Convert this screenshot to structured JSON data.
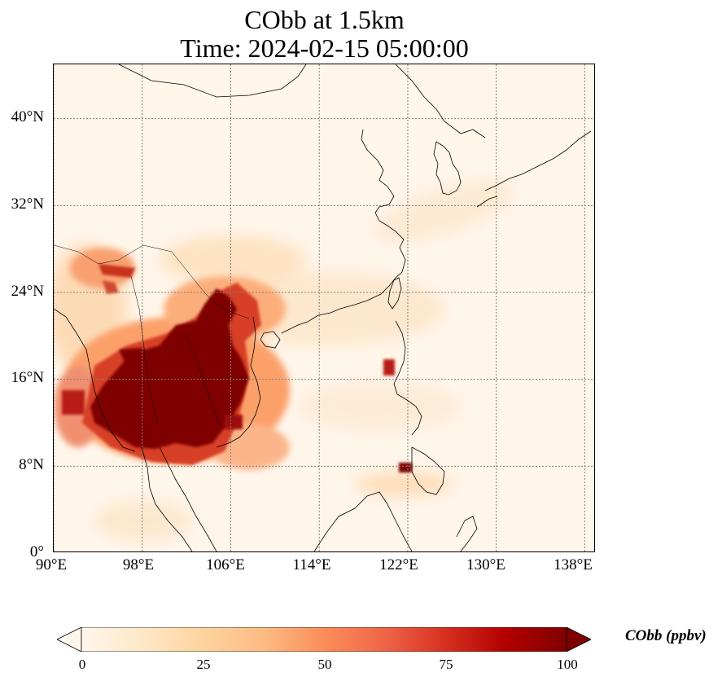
{
  "title": {
    "line1": "CObb at 1.5km",
    "line2": "Time: 2024-02-15 05:00:00"
  },
  "map": {
    "lon_range": [
      90,
      139
    ],
    "lat_range": [
      0,
      45
    ],
    "gridlines": "dotted",
    "lat_ticks": [
      "0°",
      "8°N",
      "16°N",
      "24°N",
      "32°N",
      "40°N"
    ],
    "lat_tick_values": [
      0,
      8,
      16,
      24,
      32,
      40
    ],
    "lon_ticks": [
      "90°E",
      "98°E",
      "106°E",
      "114°E",
      "122°E",
      "130°E",
      "138°E"
    ],
    "lon_tick_values": [
      90,
      98,
      106,
      114,
      122,
      130,
      138
    ],
    "colormap": "OrRd",
    "colors": {
      "low": "#fff7ec",
      "mid": "#fdbb84",
      "high": "#d7301f",
      "max": "#7f0000",
      "coastline": "#000000",
      "gridline": "#808080"
    }
  },
  "colorbar": {
    "label": "CObb (ppbv)",
    "ticks": [
      "0",
      "25",
      "50",
      "75",
      "100"
    ],
    "tick_values": [
      0,
      25,
      50,
      75,
      100
    ],
    "range": [
      0,
      100
    ],
    "extend": "both",
    "orientation": "horizontal"
  }
}
